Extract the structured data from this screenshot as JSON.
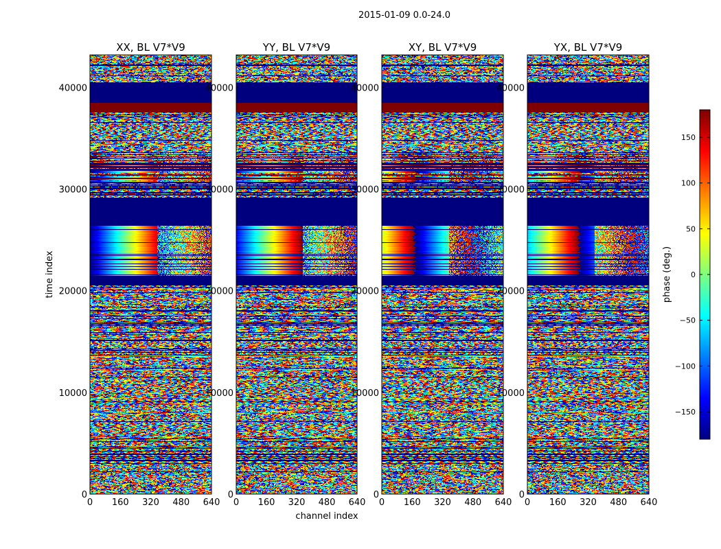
{
  "chart_data": {
    "type": "heatmap",
    "suptitle": "2015-01-09 0.0-24.0",
    "xlabel": "channel index",
    "ylabel": "time index",
    "xlim": [
      0,
      640
    ],
    "ylim": [
      0,
      43200
    ],
    "xticks": [
      "0",
      "160",
      "320",
      "480",
      "640"
    ],
    "yticks": [
      "0",
      "10000",
      "20000",
      "30000",
      "40000"
    ],
    "xtick_values": [
      0,
      160,
      320,
      480,
      640
    ],
    "ytick_values": [
      0,
      10000,
      20000,
      30000,
      40000
    ],
    "panels": [
      {
        "title": "XX, BL V7*V9",
        "fringe_offset": 0
      },
      {
        "title": "YY, BL V7*V9",
        "fringe_offset": 0.1
      },
      {
        "title": "XY, BL V7*V9",
        "fringe_offset": 0.55
      },
      {
        "title": "YX, BL V7*V9",
        "fringe_offset": 0.3
      }
    ],
    "colormap": "jet",
    "colorbar": {
      "label": "phase (deg.)",
      "range": [
        -180,
        180
      ],
      "ticks": [
        "150",
        "100",
        "50",
        "0",
        "−50",
        "−100",
        "−150"
      ],
      "tick_values": [
        150,
        100,
        50,
        0,
        -50,
        -100,
        -150
      ]
    },
    "segments": [
      {
        "from": 0,
        "to": 3000,
        "kind": "noise"
      },
      {
        "from": 3000,
        "to": 4600,
        "kind": "striped"
      },
      {
        "from": 4600,
        "to": 20500,
        "kind": "noise-fringe"
      },
      {
        "from": 20500,
        "to": 21400,
        "kind": "flagged"
      },
      {
        "from": 21400,
        "to": 26400,
        "kind": "coherent"
      },
      {
        "from": 26400,
        "to": 29000,
        "kind": "flagged"
      },
      {
        "from": 29000,
        "to": 30600,
        "kind": "striped"
      },
      {
        "from": 30600,
        "to": 33600,
        "kind": "mixed"
      },
      {
        "from": 33600,
        "to": 37500,
        "kind": "noise-fringe"
      },
      {
        "from": 37500,
        "to": 38500,
        "kind": "flagged-red"
      },
      {
        "from": 38500,
        "to": 40500,
        "kind": "flagged"
      },
      {
        "from": 40500,
        "to": 43200,
        "kind": "noise"
      }
    ]
  }
}
